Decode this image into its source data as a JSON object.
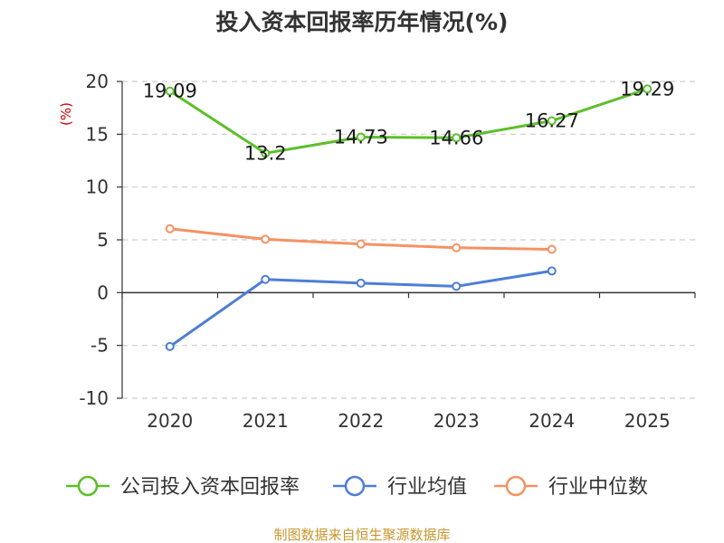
{
  "chart_data": {
    "type": "line",
    "title": "投入资本回报率历年情况(%)",
    "ylabel": "(%)",
    "xlabel": "",
    "categories": [
      "2020",
      "2021",
      "2022",
      "2023",
      "2024",
      "2025"
    ],
    "ylim": [
      -10,
      20
    ],
    "yticks": [
      20,
      15,
      10,
      5,
      0,
      -5,
      -10
    ],
    "grid": true,
    "legend_position": "bottom",
    "series": [
      {
        "name": "公司投入资本回报率",
        "color": "#5cbf2a",
        "values": [
          19.09,
          13.2,
          14.73,
          14.66,
          16.27,
          19.29
        ],
        "labels": [
          "19.09",
          "13.2",
          "14.73",
          "14.66",
          "16.27",
          "19.29"
        ]
      },
      {
        "name": "行业均值",
        "color": "#4e7ed6",
        "values": [
          -5.1,
          1.25,
          0.9,
          0.6,
          2.05,
          null
        ]
      },
      {
        "name": "行业中位数",
        "color": "#f59263",
        "values": [
          6.05,
          5.05,
          4.6,
          4.25,
          4.1,
          null
        ]
      }
    ]
  },
  "source_text": "制图数据来自恒生聚源数据库"
}
